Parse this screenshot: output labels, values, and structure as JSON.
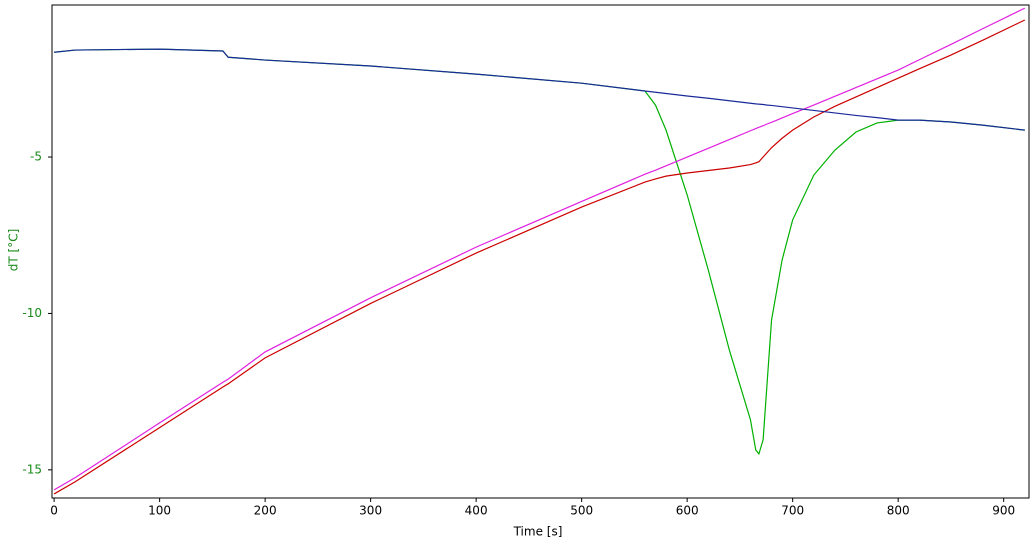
{
  "chart_data": {
    "type": "line",
    "x_label": "Time [s]",
    "y_label": "dT [°C]",
    "xlim": [
      -2,
      924
    ],
    "ylim": [
      -15.9,
      -0.14
    ],
    "xticks": [
      0,
      100,
      200,
      300,
      400,
      500,
      600,
      700,
      800,
      900
    ],
    "yticks": [
      -15,
      -10,
      -5
    ],
    "x": [
      0,
      20,
      100,
      160,
      165,
      200,
      300,
      400,
      500,
      560,
      570,
      580,
      600,
      620,
      640,
      660,
      665,
      668,
      672,
      676,
      680,
      690,
      700,
      720,
      740,
      760,
      780,
      800,
      820,
      850,
      880,
      920
    ],
    "series": [
      {
        "color": "#00b000",
        "values": [
          -1.65,
          -1.58,
          -1.55,
          -1.61,
          -1.81,
          -1.9,
          -2.09,
          -2.35,
          -2.64,
          -2.89,
          -3.34,
          -4.14,
          -6.21,
          -8.61,
          -11.17,
          -13.4,
          -14.36,
          -14.49,
          -14.04,
          -12.12,
          -10.21,
          -8.29,
          -7.01,
          -5.58,
          -4.78,
          -4.2,
          -3.91,
          -3.82,
          -3.82,
          -3.88,
          -3.98,
          -4.14
        ]
      },
      {
        "color": "#e020e0",
        "values": [
          -15.64,
          -15.25,
          -13.5,
          -12.2,
          -12.1,
          -11.23,
          -9.5,
          -7.88,
          -6.42,
          -5.55,
          -5.42,
          -5.28,
          -5.0,
          -4.72,
          -4.44,
          -4.16,
          -4.09,
          -4.05,
          -4.0,
          -3.94,
          -3.89,
          -3.75,
          -3.61,
          -3.34,
          -3.06,
          -2.78,
          -2.5,
          -2.22,
          -1.89,
          -1.4,
          -0.9,
          -0.24
        ]
      },
      {
        "color": "#cc0000",
        "values": [
          -15.77,
          -15.38,
          -13.65,
          -12.35,
          -12.25,
          -11.42,
          -9.68,
          -8.07,
          -6.6,
          -5.8,
          -5.7,
          -5.61,
          -5.51,
          -5.43,
          -5.35,
          -5.24,
          -5.19,
          -5.15,
          -5.0,
          -4.85,
          -4.7,
          -4.4,
          -4.14,
          -3.72,
          -3.38,
          -3.08,
          -2.78,
          -2.48,
          -2.18,
          -1.74,
          -1.27,
          -0.62
        ]
      },
      {
        "color": "#1a2a9a",
        "values": [
          -1.65,
          -1.58,
          -1.55,
          -1.61,
          -1.81,
          -1.9,
          -2.09,
          -2.35,
          -2.64,
          -2.89,
          -2.93,
          -2.97,
          -3.05,
          -3.12,
          -3.2,
          -3.28,
          -3.3,
          -3.31,
          -3.32,
          -3.34,
          -3.35,
          -3.39,
          -3.43,
          -3.51,
          -3.59,
          -3.67,
          -3.74,
          -3.82,
          -3.82,
          -3.88,
          -3.98,
          -4.14
        ]
      }
    ]
  }
}
